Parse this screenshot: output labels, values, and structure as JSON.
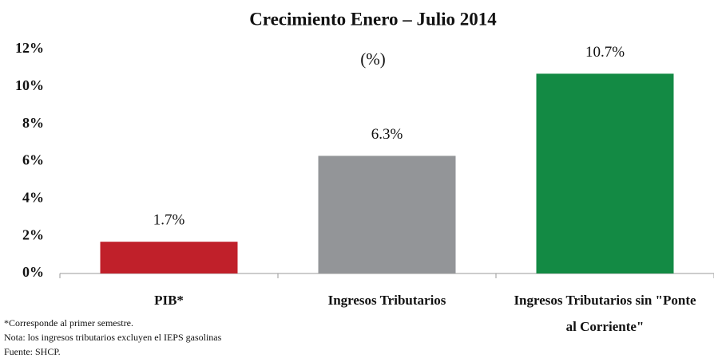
{
  "chart_data": {
    "type": "bar",
    "title": "Crecimiento Enero – Julio 2014",
    "subtitle": "(%)",
    "categories": [
      "PIB*",
      "Ingresos Tributarios",
      "Ingresos Tributarios sin \"Ponte al Corriente\""
    ],
    "values": [
      1.7,
      6.3,
      10.7
    ],
    "value_labels": [
      "1.7%",
      "6.3%",
      "10.7%"
    ],
    "colors": [
      "#c0202a",
      "#939598",
      "#138a44"
    ],
    "ylim": [
      0,
      12
    ],
    "yticks": [
      {
        "value": 0,
        "label": "0%"
      },
      {
        "value": 2,
        "label": "2%"
      },
      {
        "value": 4,
        "label": "4%"
      },
      {
        "value": 6,
        "label": "6%"
      },
      {
        "value": 8,
        "label": "8%"
      },
      {
        "value": 10,
        "label": "10%"
      },
      {
        "value": 12,
        "label": "12%"
      }
    ],
    "grid": false,
    "footnotes": [
      "*Corresponde al primer semestre.",
      "Nota: los ingresos tributarios excluyen el IEPS gasolinas",
      "Fuente: SHCP."
    ]
  }
}
